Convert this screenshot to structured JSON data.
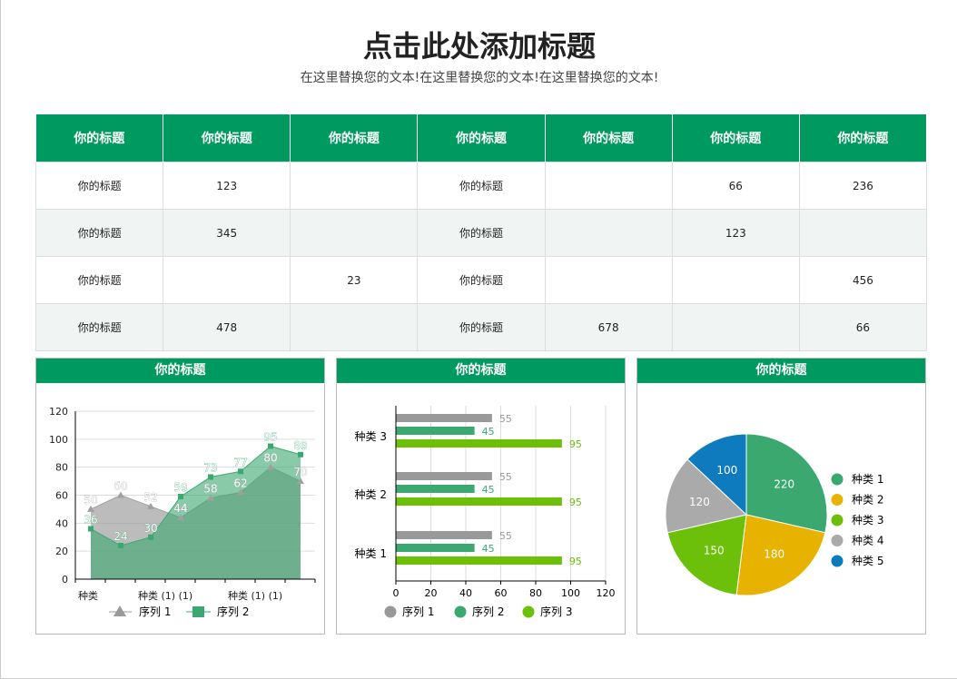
{
  "title": "点击此处添加标题",
  "subtitle": "在这里替换您的文本!在这里替换您的文本!在这里替换您的文本!",
  "table": {
    "headers": [
      "你的标题",
      "你的标题",
      "你的标题",
      "你的标题",
      "你的标题",
      "你的标题",
      "你的标题"
    ],
    "rows": [
      [
        "你的标题",
        "123",
        "",
        "你的标题",
        "",
        "66",
        "236"
      ],
      [
        "你的标题",
        "345",
        "",
        "你的标题",
        "",
        "123",
        ""
      ],
      [
        "你的标题",
        "",
        "23",
        "你的标题",
        "",
        "",
        "456"
      ],
      [
        "你的标题",
        "478",
        "",
        "你的标题",
        "678",
        "",
        "66"
      ]
    ]
  },
  "chart_data": [
    {
      "type": "area",
      "title": "你的标题",
      "x_labels": [
        "种类",
        "",
        "种类 (1) (1)",
        "",
        "",
        "种类 (1) (1)",
        "",
        ""
      ],
      "ylim": [
        0,
        120
      ],
      "yticks": [
        0,
        20,
        40,
        60,
        80,
        100,
        120
      ],
      "series": [
        {
          "name": "序列 1",
          "values": [
            50,
            60,
            52,
            44,
            58,
            62,
            80,
            70
          ],
          "color": "#a0a0a0"
        },
        {
          "name": "序列 2",
          "values": [
            36,
            24,
            30,
            59,
            73,
            77,
            95,
            89
          ],
          "color": "#3aa86f"
        }
      ]
    },
    {
      "type": "bar",
      "orientation": "horizontal",
      "title": "你的标题",
      "categories": [
        "种类 1",
        "种类 2",
        "种类 3"
      ],
      "xlim": [
        0,
        120
      ],
      "xticks": [
        0,
        20,
        40,
        60,
        80,
        100,
        120
      ],
      "series": [
        {
          "name": "序列 1",
          "values": [
            55,
            55,
            55
          ],
          "color": "#999999"
        },
        {
          "name": "序列 2",
          "values": [
            45,
            45,
            45
          ],
          "color": "#3aa86f"
        },
        {
          "name": "序列 3",
          "values": [
            95,
            95,
            95
          ],
          "color": "#6cc00a"
        }
      ]
    },
    {
      "type": "pie",
      "title": "你的标题",
      "categories": [
        "种类 1",
        "种类 2",
        "种类 3",
        "种类 4",
        "种类 5"
      ],
      "values": [
        220,
        180,
        150,
        120,
        100
      ],
      "colors": [
        "#3aa86f",
        "#e8b300",
        "#6cc00a",
        "#aaaaaa",
        "#0f7bbf"
      ]
    }
  ]
}
